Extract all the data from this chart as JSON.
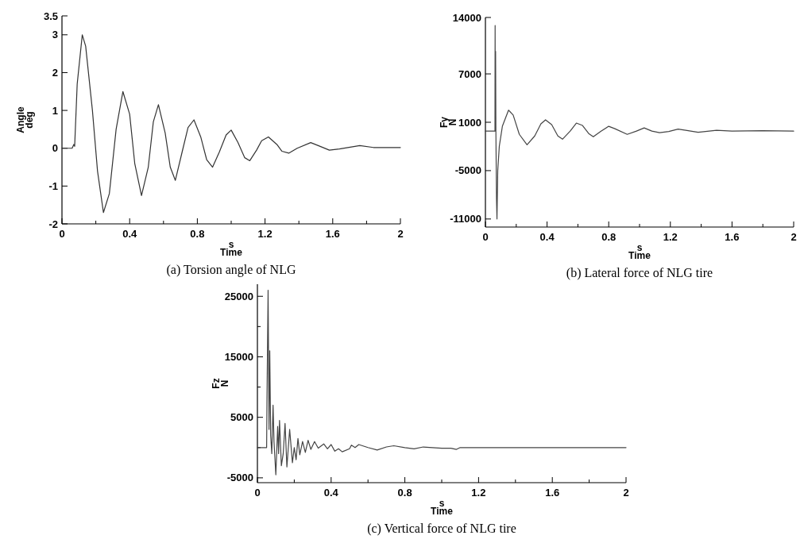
{
  "chart_data": [
    {
      "type": "line",
      "title": "(a) Torsion angle of NLG",
      "xlabel": "s\nTime",
      "ylabel": "Angle\ndeg",
      "xlim": [
        0,
        2
      ],
      "ylim": [
        -2,
        3.5
      ],
      "xticks": [
        0,
        {
          "value": 0.2,
          "label": null
        },
        0.4,
        {
          "value": 0.6,
          "label": null
        },
        0.8,
        {
          "value": 1.0,
          "label": null
        },
        1.2,
        {
          "value": 1.4,
          "label": null
        },
        1.6,
        {
          "value": 1.8,
          "label": null
        },
        2
      ],
      "yticks": [
        -2,
        -1,
        0,
        1,
        2,
        3,
        3.5
      ],
      "series": [
        {
          "color": "#333333",
          "x": [
            0,
            0.06,
            0.07,
            0.075,
            0.09,
            0.12,
            0.14,
            0.18,
            0.21,
            0.245,
            0.28,
            0.32,
            0.36,
            0.4,
            0.43,
            0.47,
            0.51,
            0.54,
            0.57,
            0.61,
            0.64,
            0.67,
            0.71,
            0.745,
            0.78,
            0.82,
            0.855,
            0.89,
            0.93,
            0.97,
            1.0,
            1.04,
            1.08,
            1.11,
            1.15,
            1.18,
            1.22,
            1.27,
            1.3,
            1.34,
            1.39,
            1.47,
            1.52,
            1.58,
            1.64,
            1.76,
            1.84,
            2
          ],
          "values": [
            0,
            0,
            0.1,
            0.05,
            1.7,
            3.0,
            2.7,
            1.0,
            -0.6,
            -1.7,
            -1.2,
            0.5,
            1.5,
            0.9,
            -0.4,
            -1.25,
            -0.5,
            0.7,
            1.15,
            0.4,
            -0.5,
            -0.85,
            -0.1,
            0.55,
            0.75,
            0.3,
            -0.3,
            -0.5,
            -0.1,
            0.35,
            0.48,
            0.15,
            -0.25,
            -0.33,
            -0.05,
            0.2,
            0.3,
            0.1,
            -0.08,
            -0.13,
            0,
            0.15,
            0.06,
            -0.05,
            -0.02,
            0.07,
            0.02,
            0.02
          ]
        }
      ]
    },
    {
      "type": "line",
      "title": "(b) Lateral force of NLG tire",
      "xlabel": "s\nTime",
      "ylabel": "Fy\nN",
      "xlim": [
        0,
        2
      ],
      "ylim": [
        -12000,
        14000
      ],
      "xticks": [
        0,
        {
          "value": 0.2,
          "label": null
        },
        0.4,
        {
          "value": 0.6,
          "label": null
        },
        0.8,
        {
          "value": 1.0,
          "label": null
        },
        1.2,
        {
          "value": 1.4,
          "label": null
        },
        1.6,
        {
          "value": 1.8,
          "label": null
        },
        2
      ],
      "yticks": [
        -11000,
        -5000,
        1000,
        7000,
        14000
      ],
      "series": [
        {
          "color": "#444444",
          "x": [
            0,
            0.062,
            0.063,
            0.064,
            0.066,
            0.068,
            0.072,
            0.075,
            0.08,
            0.09,
            0.11,
            0.15,
            0.18,
            0.22,
            0.27,
            0.32,
            0.36,
            0.39,
            0.43,
            0.47,
            0.5,
            0.55,
            0.59,
            0.63,
            0.67,
            0.7,
            0.75,
            0.8,
            0.84,
            0.92,
            0.98,
            1.03,
            1.08,
            1.13,
            1.19,
            1.25,
            1.3,
            1.38,
            1.5,
            1.6,
            1.8,
            2
          ],
          "values": [
            -100,
            -100,
            13000,
            -100,
            9800,
            -200,
            -8500,
            -11000,
            -5000,
            -2000,
            500,
            2500,
            1900,
            -500,
            -1800,
            -700,
            800,
            1300,
            700,
            -700,
            -1100,
            -100,
            900,
            600,
            -400,
            -800,
            -100,
            500,
            200,
            -500,
            -100,
            300,
            -100,
            -300,
            -150,
            150,
            0,
            -250,
            0,
            -100,
            -50,
            -100
          ]
        }
      ]
    },
    {
      "type": "line",
      "title": "(c) Vertical force of NLG tire",
      "xlabel": "s\nTime",
      "ylabel": "Fz\nN",
      "xlim": [
        0,
        2
      ],
      "ylim": [
        -5800,
        27000
      ],
      "xticks": [
        0,
        {
          "value": 0.2,
          "label": null
        },
        0.4,
        {
          "value": 0.6,
          "label": null
        },
        0.8,
        {
          "value": 1.0,
          "label": null
        },
        1.2,
        {
          "value": 1.4,
          "label": null
        },
        1.6,
        {
          "value": 1.8,
          "label": null
        },
        2
      ],
      "yticks": [
        -5000,
        {
          "value": 0,
          "label": null
        },
        5000,
        {
          "value": 10000,
          "label": null
        },
        15000,
        {
          "value": 20000,
          "label": null
        },
        25000
      ],
      "series": [
        {
          "color": "#444444",
          "x": [
            0,
            0.05,
            0.052,
            0.058,
            0.063,
            0.067,
            0.072,
            0.078,
            0.085,
            0.09,
            0.1,
            0.11,
            0.115,
            0.12,
            0.13,
            0.14,
            0.15,
            0.16,
            0.175,
            0.19,
            0.2,
            0.21,
            0.22,
            0.23,
            0.245,
            0.26,
            0.275,
            0.29,
            0.31,
            0.33,
            0.36,
            0.38,
            0.4,
            0.42,
            0.44,
            0.46,
            0.5,
            0.51,
            0.53,
            0.55,
            0.6,
            0.65,
            0.7,
            0.74,
            0.8,
            0.85,
            0.9,
            0.95,
            1.0,
            1.05,
            1.08,
            1.1,
            1.3,
            1.45,
            1.5,
            2
          ],
          "values": [
            0,
            0,
            8000,
            26000,
            3000,
            16000,
            2000,
            -1000,
            7000,
            1000,
            -4500,
            3500,
            -1000,
            4500,
            -3000,
            -1000,
            4000,
            -3200,
            3000,
            -2500,
            0,
            -2000,
            1500,
            -1200,
            1000,
            -800,
            1200,
            -300,
            1000,
            -100,
            600,
            -200,
            500,
            -600,
            -200,
            -700,
            -200,
            400,
            0,
            500,
            0,
            -400,
            100,
            300,
            0,
            -200,
            100,
            0,
            -100,
            -100,
            -300,
            0,
            0,
            0,
            0,
            0
          ]
        }
      ]
    }
  ]
}
